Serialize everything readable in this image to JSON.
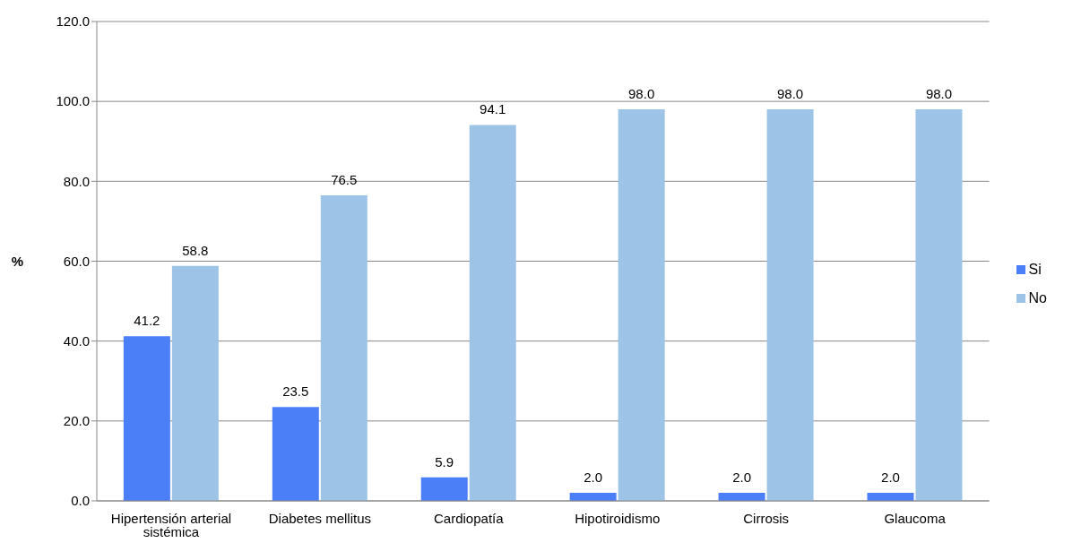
{
  "chart_data": {
    "type": "bar",
    "ylabel": "%",
    "categories": [
      "Hipertensión arterial sistémica",
      "Diabetes mellitus",
      "Cardiopatía",
      "Hipotiroidismo",
      "Cirrosis",
      "Glaucoma"
    ],
    "series": [
      {
        "name": "Si",
        "color": "#4a7ff7",
        "values": [
          41.2,
          23.5,
          5.9,
          2.0,
          2.0,
          2.0
        ],
        "value_labels": [
          "41.2",
          "23.5",
          "5.9",
          "2.0",
          "2.0",
          "2.0"
        ]
      },
      {
        "name": "No",
        "color": "#9dc3e6",
        "values": [
          58.8,
          76.5,
          94.1,
          98.0,
          98.0,
          98.0
        ],
        "value_labels": [
          "58.8",
          "76.5",
          "94.1",
          "98.0",
          "98.0",
          "98.0"
        ]
      }
    ],
    "ylim": [
      0,
      120
    ],
    "yticks": [
      {
        "value": 0,
        "label": "0.0"
      },
      {
        "value": 20,
        "label": "20.0"
      },
      {
        "value": 40,
        "label": "40.0"
      },
      {
        "value": 60,
        "label": "60.0"
      },
      {
        "value": 80,
        "label": "80.0"
      },
      {
        "value": 100,
        "label": "100.0"
      },
      {
        "value": 120,
        "label": "120.0"
      }
    ],
    "grid": "y",
    "legend": "right"
  }
}
